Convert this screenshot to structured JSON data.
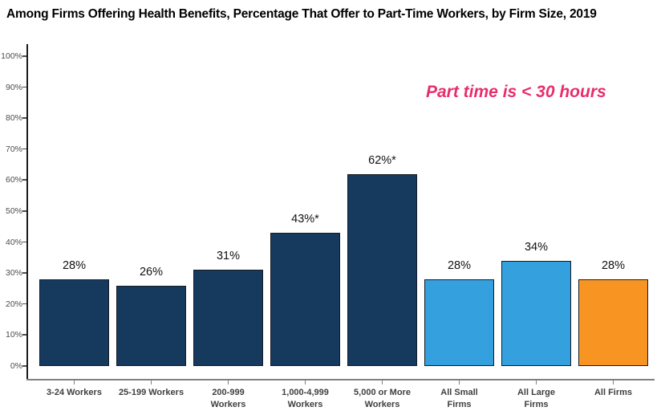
{
  "title": "Among Firms Offering Health Benefits, Percentage That Offer to Part-Time Workers, by Firm Size, 2019",
  "annotation": {
    "text": "Part time is < 30 hours",
    "color": "#E82D6E"
  },
  "colors": {
    "navy": "#16395E",
    "blue": "#34A0DE",
    "orange": "#F89522",
    "bar_border": "#141C26",
    "y_axis": "#1A1A1A",
    "x_axis": "#808080",
    "tick_label": "#4D4D4D",
    "category_label": "#3F3F3F",
    "value_label": "#111111",
    "annotation": "#E82D6E"
  },
  "chart_data": {
    "type": "bar",
    "title": "Among Firms Offering Health Benefits, Percentage That Offer to Part-Time Workers, by Firm Size, 2019",
    "categories": [
      "3-24 Workers",
      "25-199 Workers",
      "200-999\nWorkers",
      "1,000-4,999\nWorkers",
      "5,000 or More\nWorkers",
      "All Small\nFirms",
      "All Large\nFirms",
      "All Firms"
    ],
    "values": [
      28,
      26,
      31,
      43,
      62,
      28,
      34,
      28
    ],
    "value_labels": [
      "28%",
      "26%",
      "31%",
      "43%*",
      "62%*",
      "28%",
      "34%",
      "28%"
    ],
    "bar_colors": [
      "#16395E",
      "#16395E",
      "#16395E",
      "#16395E",
      "#16395E",
      "#34A0DE",
      "#34A0DE",
      "#F89522"
    ],
    "xlabel": "",
    "ylabel": "",
    "ylim": [
      0,
      100
    ],
    "ytick_values": [
      0,
      10,
      20,
      30,
      40,
      50,
      60,
      70,
      80,
      90,
      100
    ],
    "ytick_labels": [
      "0%",
      "10%",
      "20%",
      "30%",
      "40%",
      "50%",
      "60%",
      "70%",
      "80%",
      "90%",
      "100%"
    ],
    "grid": false,
    "legend": false,
    "annotation": {
      "text": "Part time is < 30 hours",
      "color": "#E82D6E"
    }
  }
}
